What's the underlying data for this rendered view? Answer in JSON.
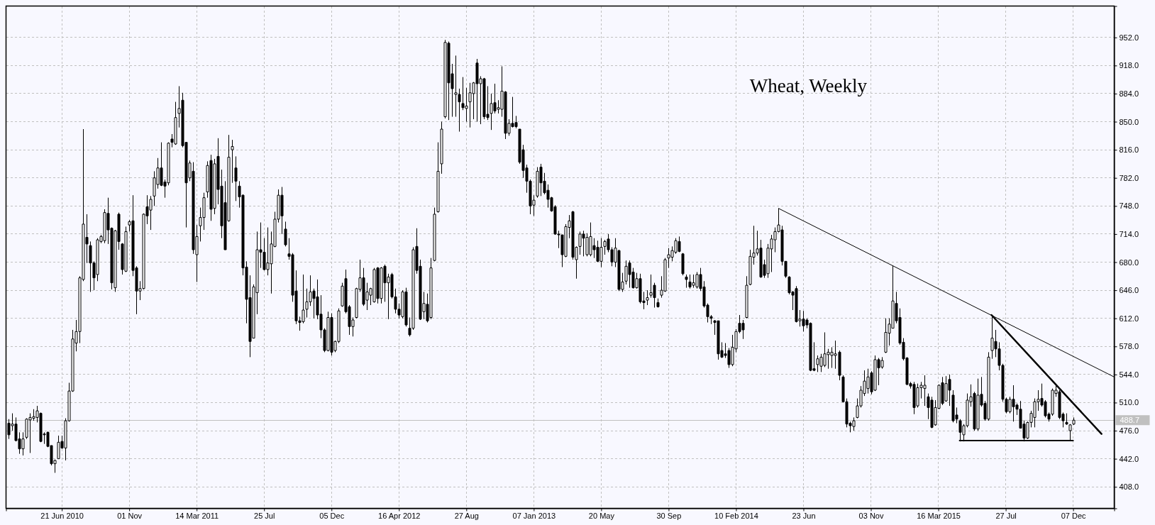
{
  "chart_data": {
    "type": "candlestick",
    "title": "Wheat, Weekly",
    "color": "#000000",
    "x": [
      "2010-03-08",
      "2010-03-15",
      "2010-03-22",
      "2010-03-29",
      "2010-04-05",
      "2010-04-12",
      "2010-04-19",
      "2010-04-26",
      "2010-05-03",
      "2010-05-10",
      "2010-05-17",
      "2010-05-24",
      "2010-05-31",
      "2010-06-07",
      "2010-06-14",
      "2010-06-21",
      "2010-06-28",
      "2010-07-05",
      "2010-07-12",
      "2010-07-19",
      "2010-07-26",
      "2010-08-02",
      "2010-08-09",
      "2010-08-16",
      "2010-08-23",
      "2010-08-30",
      "2010-09-06",
      "2010-09-13",
      "2010-09-20",
      "2010-09-27",
      "2010-10-04",
      "2010-10-11",
      "2010-10-18",
      "2010-10-25",
      "2010-11-01",
      "2010-11-08",
      "2010-11-15",
      "2010-11-22",
      "2010-11-29",
      "2010-12-06",
      "2010-12-13",
      "2010-12-20",
      "2010-12-27",
      "2011-01-03",
      "2011-01-10",
      "2011-01-17",
      "2011-01-24",
      "2011-01-31",
      "2011-02-07",
      "2011-02-14",
      "2011-02-21",
      "2011-02-28",
      "2011-03-07",
      "2011-03-14",
      "2011-03-21",
      "2011-03-28",
      "2011-04-04",
      "2011-04-11",
      "2011-04-18",
      "2011-04-25",
      "2011-05-02",
      "2011-05-09",
      "2011-05-16",
      "2011-05-23",
      "2011-05-30",
      "2011-06-06",
      "2011-06-13",
      "2011-06-20",
      "2011-06-27",
      "2011-07-04",
      "2011-07-11",
      "2011-07-18",
      "2011-07-25",
      "2011-08-01",
      "2011-08-08",
      "2011-08-15",
      "2011-08-22",
      "2011-08-29",
      "2011-09-05",
      "2011-09-12",
      "2011-09-19",
      "2011-09-26",
      "2011-10-03",
      "2011-10-10",
      "2011-10-17",
      "2011-10-24",
      "2011-10-31",
      "2011-11-07",
      "2011-11-14",
      "2011-11-21",
      "2011-11-28",
      "2011-12-05",
      "2011-12-12",
      "2011-12-19",
      "2011-12-26",
      "2012-01-02",
      "2012-01-09",
      "2012-01-16",
      "2012-01-23",
      "2012-01-30",
      "2012-02-06",
      "2012-02-13",
      "2012-02-20",
      "2012-02-27",
      "2012-03-05",
      "2012-03-12",
      "2012-03-19",
      "2012-03-26",
      "2012-04-02",
      "2012-04-09",
      "2012-04-16",
      "2012-04-23",
      "2012-04-30",
      "2012-05-07",
      "2012-05-14",
      "2012-05-21",
      "2012-05-28",
      "2012-06-04",
      "2012-06-11",
      "2012-06-18",
      "2012-06-25",
      "2012-07-02",
      "2012-07-09",
      "2012-07-16",
      "2012-07-23",
      "2012-07-30",
      "2012-08-06",
      "2012-08-13",
      "2012-08-20",
      "2012-08-27",
      "2012-09-03",
      "2012-09-10",
      "2012-09-17",
      "2012-09-24",
      "2012-10-01",
      "2012-10-08",
      "2012-10-15",
      "2012-10-22",
      "2012-10-29",
      "2012-11-05",
      "2012-11-12",
      "2012-11-19",
      "2012-11-26",
      "2012-12-03",
      "2012-12-10",
      "2012-12-17",
      "2012-12-24",
      "2012-12-31",
      "2013-01-07",
      "2013-01-14",
      "2013-01-21",
      "2013-01-28",
      "2013-02-04",
      "2013-02-11",
      "2013-02-18",
      "2013-02-25",
      "2013-03-04",
      "2013-03-11",
      "2013-03-18",
      "2013-03-25",
      "2013-04-01",
      "2013-04-08",
      "2013-04-15",
      "2013-04-22",
      "2013-04-29",
      "2013-05-06",
      "2013-05-13",
      "2013-05-20",
      "2013-05-27",
      "2013-06-03",
      "2013-06-10",
      "2013-06-17",
      "2013-06-24",
      "2013-07-01",
      "2013-07-08",
      "2013-07-15",
      "2013-07-22",
      "2013-07-29",
      "2013-08-05",
      "2013-08-12",
      "2013-08-19",
      "2013-08-26",
      "2013-09-02",
      "2013-09-09",
      "2013-09-16",
      "2013-09-23",
      "2013-09-30",
      "2013-10-07",
      "2013-10-14",
      "2013-10-21",
      "2013-10-28",
      "2013-11-04",
      "2013-11-11",
      "2013-11-18",
      "2013-11-25",
      "2013-12-02",
      "2013-12-09",
      "2013-12-16",
      "2013-12-23",
      "2013-12-30",
      "2014-01-06",
      "2014-01-13",
      "2014-01-20",
      "2014-01-27",
      "2014-02-03",
      "2014-02-10",
      "2014-02-17",
      "2014-02-24",
      "2014-03-03",
      "2014-03-10",
      "2014-03-17",
      "2014-03-24",
      "2014-03-31",
      "2014-04-07",
      "2014-04-14",
      "2014-04-21",
      "2014-04-28",
      "2014-05-05",
      "2014-05-12",
      "2014-05-19",
      "2014-05-26",
      "2014-06-02",
      "2014-06-09",
      "2014-06-16",
      "2014-06-23",
      "2014-06-30",
      "2014-07-07",
      "2014-07-14",
      "2014-07-21",
      "2014-07-28",
      "2014-08-04",
      "2014-08-11",
      "2014-08-18",
      "2014-08-25",
      "2014-09-01",
      "2014-09-08",
      "2014-09-15",
      "2014-09-22",
      "2014-09-29",
      "2014-10-06",
      "2014-10-13",
      "2014-10-20",
      "2014-10-27",
      "2014-11-03",
      "2014-11-10",
      "2014-11-17",
      "2014-11-24",
      "2014-12-01",
      "2014-12-08",
      "2014-12-15",
      "2014-12-22",
      "2014-12-29",
      "2015-01-05",
      "2015-01-12",
      "2015-01-19",
      "2015-01-26",
      "2015-02-02",
      "2015-02-09",
      "2015-02-16",
      "2015-02-23",
      "2015-03-02",
      "2015-03-09",
      "2015-03-16",
      "2015-03-23",
      "2015-03-30",
      "2015-04-06",
      "2015-04-13",
      "2015-04-20",
      "2015-04-27",
      "2015-05-04",
      "2015-05-11",
      "2015-05-18",
      "2015-05-25",
      "2015-06-01",
      "2015-06-08",
      "2015-06-15",
      "2015-06-22",
      "2015-06-29",
      "2015-07-06",
      "2015-07-13",
      "2015-07-20",
      "2015-07-27",
      "2015-08-03",
      "2015-08-10",
      "2015-08-17",
      "2015-08-24",
      "2015-08-31",
      "2015-09-07",
      "2015-09-14",
      "2015-09-21",
      "2015-09-28",
      "2015-10-05",
      "2015-10-12",
      "2015-10-19",
      "2015-10-26",
      "2015-11-02",
      "2015-11-09",
      "2015-11-16",
      "2015-11-23",
      "2015-11-30",
      "2015-12-07"
    ],
    "ohlc": [
      [
        485,
        490,
        466,
        471
      ],
      [
        482,
        497,
        476,
        484
      ],
      [
        484,
        492,
        463,
        464
      ],
      [
        466,
        474,
        448,
        454
      ],
      [
        454,
        474,
        446,
        466
      ],
      [
        468,
        491,
        466,
        490
      ],
      [
        489,
        497,
        449,
        492
      ],
      [
        491,
        502,
        488,
        493
      ],
      [
        492,
        506,
        486,
        500
      ],
      [
        497,
        498,
        462,
        463
      ],
      [
        472,
        474,
        460,
        471
      ],
      [
        474,
        475,
        456,
        457
      ],
      [
        458,
        458,
        434,
        436
      ],
      [
        436,
        441,
        425,
        440
      ],
      [
        442,
        470,
        442,
        462
      ],
      [
        463,
        470,
        454,
        455
      ],
      [
        455,
        491,
        440,
        488
      ],
      [
        488,
        534,
        487,
        524
      ],
      [
        524,
        598,
        523,
        587
      ],
      [
        582,
        610,
        572,
        596
      ],
      [
        596,
        663,
        582,
        661
      ],
      [
        659,
        841,
        657,
        726
      ],
      [
        710,
        738,
        679,
        702
      ],
      [
        700,
        705,
        644,
        679
      ],
      [
        679,
        681,
        646,
        661
      ],
      [
        665,
        709,
        657,
        707
      ],
      [
        705,
        713,
        703,
        711
      ],
      [
        706,
        744,
        703,
        740
      ],
      [
        739,
        758,
        702,
        719
      ],
      [
        721,
        722,
        647,
        655
      ],
      [
        649,
        719,
        644,
        718
      ],
      [
        738,
        740,
        695,
        705
      ],
      [
        702,
        703,
        665,
        671
      ],
      [
        669,
        723,
        668,
        717
      ],
      [
        725,
        731,
        717,
        729
      ],
      [
        730,
        761,
        663,
        670
      ],
      [
        673,
        675,
        617,
        645
      ],
      [
        645,
        657,
        634,
        648
      ],
      [
        648,
        739,
        647,
        738
      ],
      [
        747,
        761,
        726,
        736
      ],
      [
        743,
        760,
        719,
        756
      ],
      [
        760,
        790,
        748,
        782
      ],
      [
        774,
        806,
        769,
        794
      ],
      [
        794,
        825,
        772,
        773
      ],
      [
        777,
        780,
        758,
        772
      ],
      [
        776,
        825,
        773,
        824
      ],
      [
        829,
        835,
        819,
        825
      ],
      [
        823,
        874,
        822,
        855
      ],
      [
        860,
        893,
        843,
        866
      ],
      [
        876,
        885,
        819,
        821
      ],
      [
        825,
        825,
        722,
        776
      ],
      [
        782,
        803,
        778,
        800
      ],
      [
        790,
        801,
        690,
        695
      ],
      [
        689,
        725,
        656,
        711
      ],
      [
        724,
        746,
        705,
        734
      ],
      [
        734,
        764,
        719,
        758
      ],
      [
        765,
        802,
        758,
        797
      ],
      [
        803,
        810,
        730,
        744
      ],
      [
        745,
        805,
        738,
        799
      ],
      [
        808,
        830,
        750,
        768
      ],
      [
        772,
        792,
        709,
        724
      ],
      [
        752,
        778,
        695,
        695
      ],
      [
        730,
        834,
        729,
        807
      ],
      [
        816,
        828,
        776,
        820
      ],
      [
        794,
        808,
        754,
        778
      ],
      [
        772,
        778,
        746,
        759
      ],
      [
        761,
        762,
        664,
        673
      ],
      [
        674,
        681,
        606,
        635
      ],
      [
        637,
        664,
        565,
        584
      ],
      [
        588,
        653,
        588,
        650
      ],
      [
        643,
        717,
        617,
        695
      ],
      [
        695,
        728,
        673,
        692
      ],
      [
        692,
        709,
        670,
        671
      ],
      [
        671,
        722,
        664,
        679
      ],
      [
        678,
        717,
        642,
        702
      ],
      [
        699,
        741,
        698,
        732
      ],
      [
        732,
        768,
        728,
        761
      ],
      [
        761,
        771,
        714,
        736
      ],
      [
        720,
        729,
        699,
        701
      ],
      [
        690,
        709,
        683,
        687
      ],
      [
        689,
        691,
        632,
        640
      ],
      [
        645,
        670,
        605,
        609
      ],
      [
        609,
        614,
        597,
        607
      ],
      [
        608,
        665,
        606,
        622
      ],
      [
        623,
        648,
        613,
        632
      ],
      [
        632,
        664,
        627,
        644
      ],
      [
        645,
        648,
        612,
        636
      ],
      [
        638,
        659,
        611,
        616
      ],
      [
        617,
        640,
        588,
        598
      ],
      [
        598,
        600,
        571,
        573
      ],
      [
        573,
        620,
        572,
        613
      ],
      [
        613,
        618,
        567,
        571
      ],
      [
        573,
        585,
        571,
        584
      ],
      [
        584,
        624,
        582,
        621
      ],
      [
        627,
        655,
        626,
        651
      ],
      [
        660,
        671,
        618,
        620
      ],
      [
        626,
        628,
        592,
        602
      ],
      [
        602,
        613,
        590,
        610
      ],
      [
        613,
        649,
        612,
        648
      ],
      [
        647,
        683,
        644,
        661
      ],
      [
        661,
        673,
        627,
        629
      ],
      [
        634,
        655,
        622,
        644
      ],
      [
        640,
        649,
        628,
        648
      ],
      [
        632,
        673,
        631,
        671
      ],
      [
        673,
        674,
        630,
        636
      ],
      [
        636,
        674,
        630,
        673
      ],
      [
        675,
        677,
        632,
        655
      ],
      [
        655,
        666,
        611,
        662
      ],
      [
        665,
        667,
        636,
        638
      ],
      [
        638,
        648,
        618,
        623
      ],
      [
        623,
        630,
        612,
        616
      ],
      [
        614,
        646,
        612,
        644
      ],
      [
        644,
        649,
        602,
        604
      ],
      [
        600,
        613,
        590,
        592
      ],
      [
        600,
        698,
        598,
        695
      ],
      [
        699,
        721,
        666,
        670
      ],
      [
        675,
        683,
        610,
        611
      ],
      [
        620,
        644,
        611,
        630
      ],
      [
        629,
        642,
        607,
        609
      ],
      [
        613,
        685,
        611,
        673
      ],
      [
        682,
        746,
        681,
        738
      ],
      [
        741,
        825,
        740,
        790
      ],
      [
        799,
        850,
        787,
        841
      ],
      [
        856,
        949,
        854,
        946
      ],
      [
        945,
        947,
        852,
        897
      ],
      [
        908,
        920,
        856,
        890
      ],
      [
        883,
        930,
        856,
        885
      ],
      [
        883,
        890,
        838,
        874
      ],
      [
        872,
        904,
        864,
        867
      ],
      [
        866,
        891,
        850,
        869
      ],
      [
        874,
        897,
        843,
        885
      ],
      [
        884,
        898,
        853,
        897
      ],
      [
        921,
        926,
        850,
        896
      ],
      [
        896,
        905,
        847,
        902
      ],
      [
        902,
        903,
        853,
        856
      ],
      [
        859,
        893,
        852,
        855
      ],
      [
        860,
        884,
        840,
        872
      ],
      [
        873,
        896,
        860,
        863
      ],
      [
        865,
        876,
        860,
        867
      ],
      [
        865,
        917,
        856,
        887
      ],
      [
        886,
        887,
        829,
        836
      ],
      [
        836,
        853,
        833,
        848
      ],
      [
        848,
        880,
        843,
        844
      ],
      [
        849,
        857,
        842,
        844
      ],
      [
        841,
        841,
        799,
        801
      ],
      [
        816,
        822,
        782,
        791
      ],
      [
        794,
        798,
        764,
        778
      ],
      [
        778,
        780,
        738,
        748
      ],
      [
        749,
        761,
        736,
        755
      ],
      [
        760,
        795,
        758,
        790
      ],
      [
        795,
        799,
        760,
        776
      ],
      [
        778,
        788,
        762,
        764
      ],
      [
        767,
        774,
        746,
        756
      ],
      [
        758,
        759,
        741,
        742
      ],
      [
        747,
        749,
        713,
        714
      ],
      [
        714,
        718,
        697,
        713
      ],
      [
        713,
        713,
        674,
        689
      ],
      [
        687,
        726,
        686,
        723
      ],
      [
        722,
        737,
        709,
        730
      ],
      [
        741,
        742,
        683,
        686
      ],
      [
        683,
        699,
        660,
        698
      ],
      [
        699,
        717,
        689,
        714
      ],
      [
        714,
        718,
        687,
        709
      ],
      [
        689,
        715,
        687,
        710
      ],
      [
        689,
        728,
        687,
        711
      ],
      [
        700,
        709,
        685,
        695
      ],
      [
        698,
        706,
        680,
        681
      ],
      [
        681,
        709,
        674,
        698
      ],
      [
        699,
        707,
        689,
        705
      ],
      [
        708,
        714,
        692,
        695
      ],
      [
        695,
        698,
        675,
        680
      ],
      [
        680,
        709,
        674,
        697
      ],
      [
        694,
        695,
        645,
        647
      ],
      [
        647,
        667,
        644,
        656
      ],
      [
        657,
        682,
        653,
        675
      ],
      [
        679,
        682,
        649,
        665
      ],
      [
        668,
        673,
        648,
        649
      ],
      [
        649,
        667,
        648,
        660
      ],
      [
        660,
        666,
        630,
        632
      ],
      [
        633,
        644,
        623,
        631
      ],
      [
        634,
        646,
        628,
        637
      ],
      [
        640,
        665,
        637,
        643
      ],
      [
        652,
        655,
        625,
        637
      ],
      [
        631,
        636,
        625,
        626
      ],
      [
        640,
        663,
        637,
        646
      ],
      [
        645,
        685,
        644,
        683
      ],
      [
        685,
        697,
        673,
        689
      ],
      [
        686,
        699,
        681,
        694
      ],
      [
        692,
        709,
        690,
        706
      ],
      [
        705,
        711,
        692,
        693
      ],
      [
        690,
        691,
        664,
        666
      ],
      [
        662,
        665,
        649,
        659
      ],
      [
        656,
        665,
        648,
        650
      ],
      [
        652,
        665,
        649,
        655
      ],
      [
        650,
        668,
        648,
        665
      ],
      [
        665,
        673,
        645,
        648
      ],
      [
        650,
        657,
        625,
        627
      ],
      [
        628,
        630,
        607,
        614
      ],
      [
        614,
        616,
        605,
        612
      ],
      [
        609,
        610,
        592,
        607
      ],
      [
        609,
        609,
        562,
        569
      ],
      [
        573,
        583,
        564,
        565
      ],
      [
        569,
        582,
        564,
        567
      ],
      [
        573,
        576,
        552,
        556
      ],
      [
        556,
        592,
        554,
        577
      ],
      [
        575,
        599,
        571,
        596
      ],
      [
        606,
        616,
        594,
        596
      ],
      [
        606,
        610,
        587,
        598
      ],
      [
        613,
        663,
        612,
        652
      ],
      [
        653,
        695,
        652,
        687
      ],
      [
        686,
        724,
        677,
        691
      ],
      [
        691,
        718,
        688,
        696
      ],
      [
        697,
        707,
        661,
        662
      ],
      [
        677,
        683,
        661,
        664
      ],
      [
        666,
        702,
        661,
        697
      ],
      [
        696,
        713,
        668,
        708
      ],
      [
        707,
        722,
        692,
        717
      ],
      [
        717,
        745,
        716,
        725
      ],
      [
        719,
        724,
        676,
        681
      ],
      [
        681,
        681,
        661,
        663
      ],
      [
        662,
        663,
        641,
        643
      ],
      [
        644,
        645,
        622,
        640
      ],
      [
        648,
        651,
        607,
        608
      ],
      [
        609,
        622,
        602,
        611
      ],
      [
        611,
        621,
        596,
        603
      ],
      [
        610,
        612,
        600,
        604
      ],
      [
        606,
        607,
        548,
        549
      ],
      [
        551,
        583,
        548,
        549
      ],
      [
        556,
        567,
        547,
        563
      ],
      [
        554,
        569,
        547,
        565
      ],
      [
        555,
        595,
        553,
        569
      ],
      [
        568,
        575,
        551,
        571
      ],
      [
        567,
        577,
        552,
        571
      ],
      [
        567,
        585,
        551,
        569
      ],
      [
        571,
        573,
        537,
        543
      ],
      [
        541,
        543,
        510,
        511
      ],
      [
        511,
        515,
        480,
        484
      ],
      [
        485,
        487,
        474,
        482
      ],
      [
        481,
        492,
        476,
        488
      ],
      [
        492,
        515,
        491,
        506
      ],
      [
        506,
        530,
        504,
        525
      ],
      [
        521,
        549,
        518,
        536
      ],
      [
        527,
        551,
        521,
        541
      ],
      [
        546,
        548,
        520,
        523
      ],
      [
        525,
        567,
        524,
        562
      ],
      [
        562,
        564,
        531,
        552
      ],
      [
        553,
        565,
        551,
        561
      ],
      [
        571,
        612,
        570,
        595
      ],
      [
        594,
        612,
        579,
        605
      ],
      [
        600,
        676,
        600,
        633
      ],
      [
        630,
        644,
        606,
        609
      ],
      [
        613,
        624,
        580,
        582
      ],
      [
        583,
        588,
        561,
        563
      ],
      [
        564,
        565,
        531,
        532
      ],
      [
        533,
        535,
        527,
        530
      ],
      [
        532,
        535,
        496,
        504
      ],
      [
        506,
        533,
        504,
        528
      ],
      [
        528,
        535,
        515,
        531
      ],
      [
        527,
        543,
        506,
        531
      ],
      [
        517,
        521,
        490,
        504
      ],
      [
        513,
        517,
        479,
        480
      ],
      [
        483,
        513,
        482,
        504
      ],
      [
        503,
        532,
        502,
        531
      ],
      [
        534,
        541,
        507,
        509
      ],
      [
        512,
        542,
        511,
        533
      ],
      [
        538,
        544,
        506,
        525
      ],
      [
        519,
        525,
        486,
        488
      ],
      [
        495,
        504,
        485,
        490
      ],
      [
        488,
        490,
        463,
        474
      ],
      [
        471,
        484,
        463,
        482
      ],
      [
        482,
        521,
        480,
        513
      ],
      [
        511,
        532,
        505,
        517
      ],
      [
        521,
        523,
        476,
        478
      ],
      [
        478,
        539,
        476,
        519
      ],
      [
        520,
        541,
        505,
        507
      ],
      [
        509,
        512,
        488,
        490
      ],
      [
        490,
        571,
        488,
        565
      ],
      [
        573,
        616,
        563,
        588
      ],
      [
        584,
        598,
        565,
        575
      ],
      [
        575,
        583,
        549,
        555
      ],
      [
        555,
        557,
        511,
        514
      ],
      [
        514,
        516,
        497,
        499
      ],
      [
        499,
        517,
        497,
        514
      ],
      [
        514,
        531,
        487,
        505
      ],
      [
        507,
        509,
        495,
        502
      ],
      [
        502,
        512,
        479,
        479
      ],
      [
        484,
        488,
        463,
        467
      ],
      [
        467,
        487,
        466,
        486
      ],
      [
        486,
        500,
        480,
        497
      ],
      [
        492,
        515,
        480,
        511
      ],
      [
        511,
        525,
        500,
        514
      ],
      [
        515,
        533,
        505,
        507
      ],
      [
        511,
        513,
        492,
        494
      ],
      [
        496,
        498,
        487,
        490
      ],
      [
        496,
        527,
        494,
        525
      ],
      [
        521,
        532,
        517,
        525
      ],
      [
        523,
        525,
        490,
        492
      ],
      [
        496,
        498,
        480,
        488
      ],
      [
        486,
        497,
        483,
        484
      ],
      [
        476,
        484,
        464,
        483
      ],
      [
        484,
        492,
        483,
        488.7
      ]
    ],
    "series": [
      {
        "type": "line",
        "x": [
          "2014-05-05",
          "2016-02-26"
        ],
        "values": [
          745,
          541
        ],
        "color": "#000000"
      },
      {
        "type": "line",
        "x": [
          "2015-06-29",
          "2016-02-01"
        ],
        "values": [
          616,
          472
        ],
        "color": "#000000"
      },
      {
        "type": "line",
        "x": [
          "2015-04-27",
          "2015-12-07"
        ],
        "values": [
          464,
          464
        ],
        "color": "#000000"
      }
    ],
    "ref_lines": [
      {
        "axis": "y",
        "value": 488.7,
        "label": "488.7",
        "color": "#c0c0c0"
      }
    ],
    "xlim": [
      "2010-03-03",
      "2016-02-26"
    ],
    "xticks": [
      {
        "value": "2010-06-21",
        "label": "21 Jun 2010"
      },
      {
        "value": "2010-11-01",
        "label": "01 Nov"
      },
      {
        "value": "2011-03-14",
        "label": "14 Mar 2011"
      },
      {
        "value": "2011-07-25",
        "label": "25 Jul"
      },
      {
        "value": "2011-12-05",
        "label": "05 Dec"
      },
      {
        "value": "2012-04-16",
        "label": "16 Apr 2012"
      },
      {
        "value": "2012-08-27",
        "label": "27 Aug"
      },
      {
        "value": "2013-01-07",
        "label": "07 Jan 2013"
      },
      {
        "value": "2013-05-20",
        "label": "20 May"
      },
      {
        "value": "2013-09-30",
        "label": "30 Sep"
      },
      {
        "value": "2014-02-10",
        "label": "10 Feb 2014"
      },
      {
        "value": "2014-06-23",
        "label": "23 Jun"
      },
      {
        "value": "2014-11-03",
        "label": "03 Nov"
      },
      {
        "value": "2015-03-16",
        "label": "16 Mar 2015"
      },
      {
        "value": "2015-07-27",
        "label": "27 Jul"
      },
      {
        "value": "2015-12-07",
        "label": "07 Dec"
      }
    ],
    "ylim": [
      382,
      990
    ],
    "yticks": [
      {
        "value": 408,
        "label": "408.0"
      },
      {
        "value": 442,
        "label": "442.0"
      },
      {
        "value": 476,
        "label": "476.0"
      },
      {
        "value": 510,
        "label": "510.0"
      },
      {
        "value": 544,
        "label": "544.0"
      },
      {
        "value": 578,
        "label": "578.0"
      },
      {
        "value": 612,
        "label": "612.0"
      },
      {
        "value": 646,
        "label": "646.0"
      },
      {
        "value": 680,
        "label": "680.0"
      },
      {
        "value": 714,
        "label": "714.0"
      },
      {
        "value": 748,
        "label": "748.0"
      },
      {
        "value": 782,
        "label": "782.0"
      },
      {
        "value": 816,
        "label": "816.0"
      },
      {
        "value": 850,
        "label": "850.0"
      },
      {
        "value": 884,
        "label": "884.0"
      },
      {
        "value": 918,
        "label": "918.0"
      },
      {
        "value": 952,
        "label": "952.0"
      }
    ],
    "grid": true
  }
}
